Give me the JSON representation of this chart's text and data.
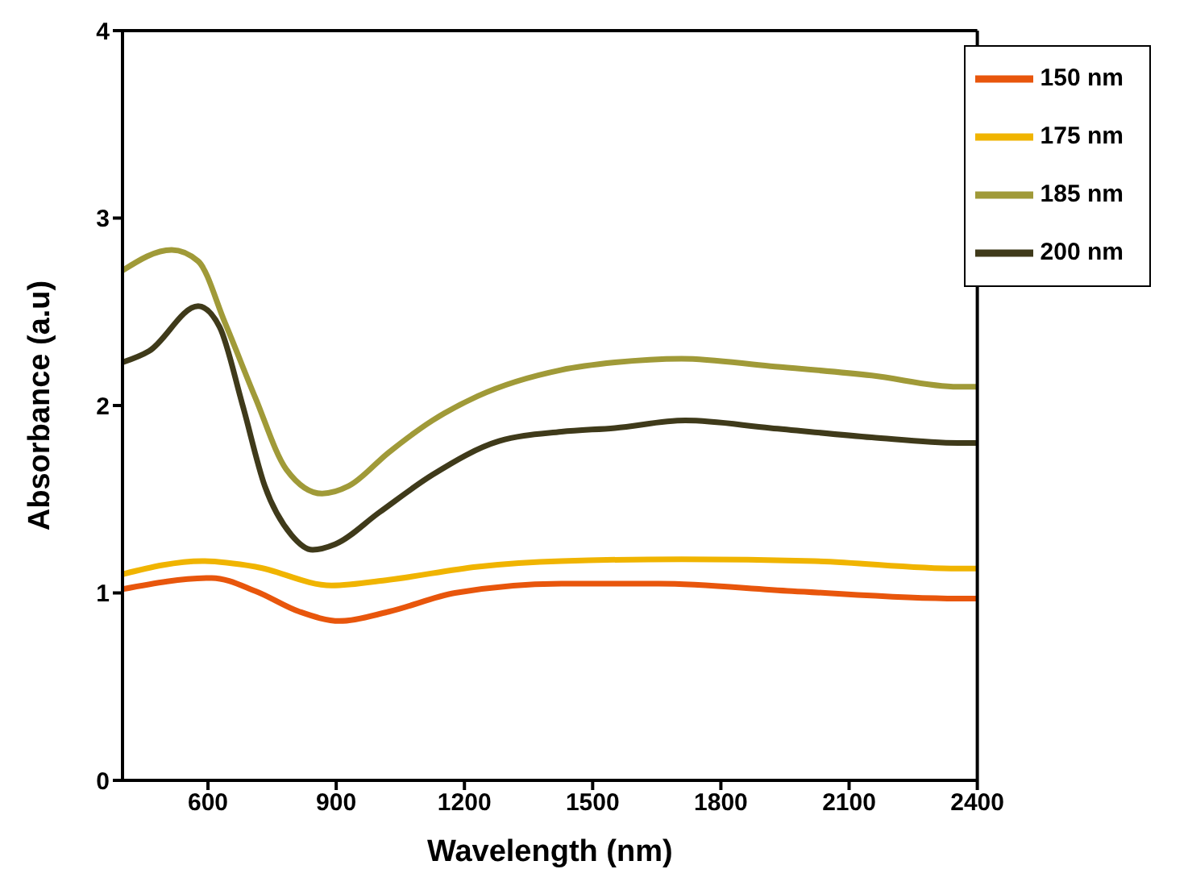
{
  "chart_data": {
    "type": "line",
    "xlabel": "Wavelength (nm)",
    "ylabel": "Absorbance (a.u)",
    "xlim": [
      400,
      2400
    ],
    "ylim": [
      0,
      4
    ],
    "xticks": [
      600,
      900,
      1200,
      1500,
      1800,
      2100,
      2400
    ],
    "yticks": [
      0,
      1,
      2,
      3,
      4
    ],
    "grid": false,
    "legend": "top right",
    "marker": "none",
    "line_style": "solid",
    "series": [
      {
        "name": "150 nm",
        "color": "#e8560c",
        "x": [
          400,
          609,
          711,
          814,
          908,
          1023,
          1178,
          1427,
          1655,
          1966,
          2355,
          2400
        ],
        "values": [
          1.02,
          1.08,
          1.01,
          0.9,
          0.85,
          0.9,
          1.0,
          1.05,
          1.05,
          1.01,
          0.97,
          0.97
        ]
      },
      {
        "name": "175 nm",
        "color": "#f0b400",
        "x": [
          400,
          587,
          711,
          889,
          1023,
          1231,
          1427,
          1708,
          2019,
          2355,
          2400
        ],
        "values": [
          1.1,
          1.17,
          1.14,
          1.04,
          1.07,
          1.14,
          1.17,
          1.18,
          1.17,
          1.13,
          1.13
        ]
      },
      {
        "name": "185 nm",
        "color": "#a09a38",
        "x": [
          400,
          515,
          577,
          640,
          711,
          783,
          867,
          929,
          1023,
          1125,
          1231,
          1427,
          1552,
          1708,
          1916,
          2153,
          2355,
          2400
        ],
        "values": [
          2.72,
          2.83,
          2.77,
          2.44,
          2.04,
          1.66,
          1.53,
          1.57,
          1.75,
          1.92,
          2.05,
          2.19,
          2.23,
          2.25,
          2.21,
          2.16,
          2.1,
          2.1
        ]
      },
      {
        "name": "200 nm",
        "color": "#3f3a1a",
        "x": [
          400,
          462,
          577,
          627,
          680,
          733,
          795,
          845,
          898,
          1001,
          1125,
          1281,
          1427,
          1552,
          1717,
          1916,
          2153,
          2355,
          2400
        ],
        "values": [
          2.23,
          2.29,
          2.53,
          2.42,
          2.01,
          1.57,
          1.31,
          1.23,
          1.26,
          1.43,
          1.63,
          1.81,
          1.86,
          1.88,
          1.92,
          1.88,
          1.83,
          1.8,
          1.8
        ]
      }
    ]
  }
}
